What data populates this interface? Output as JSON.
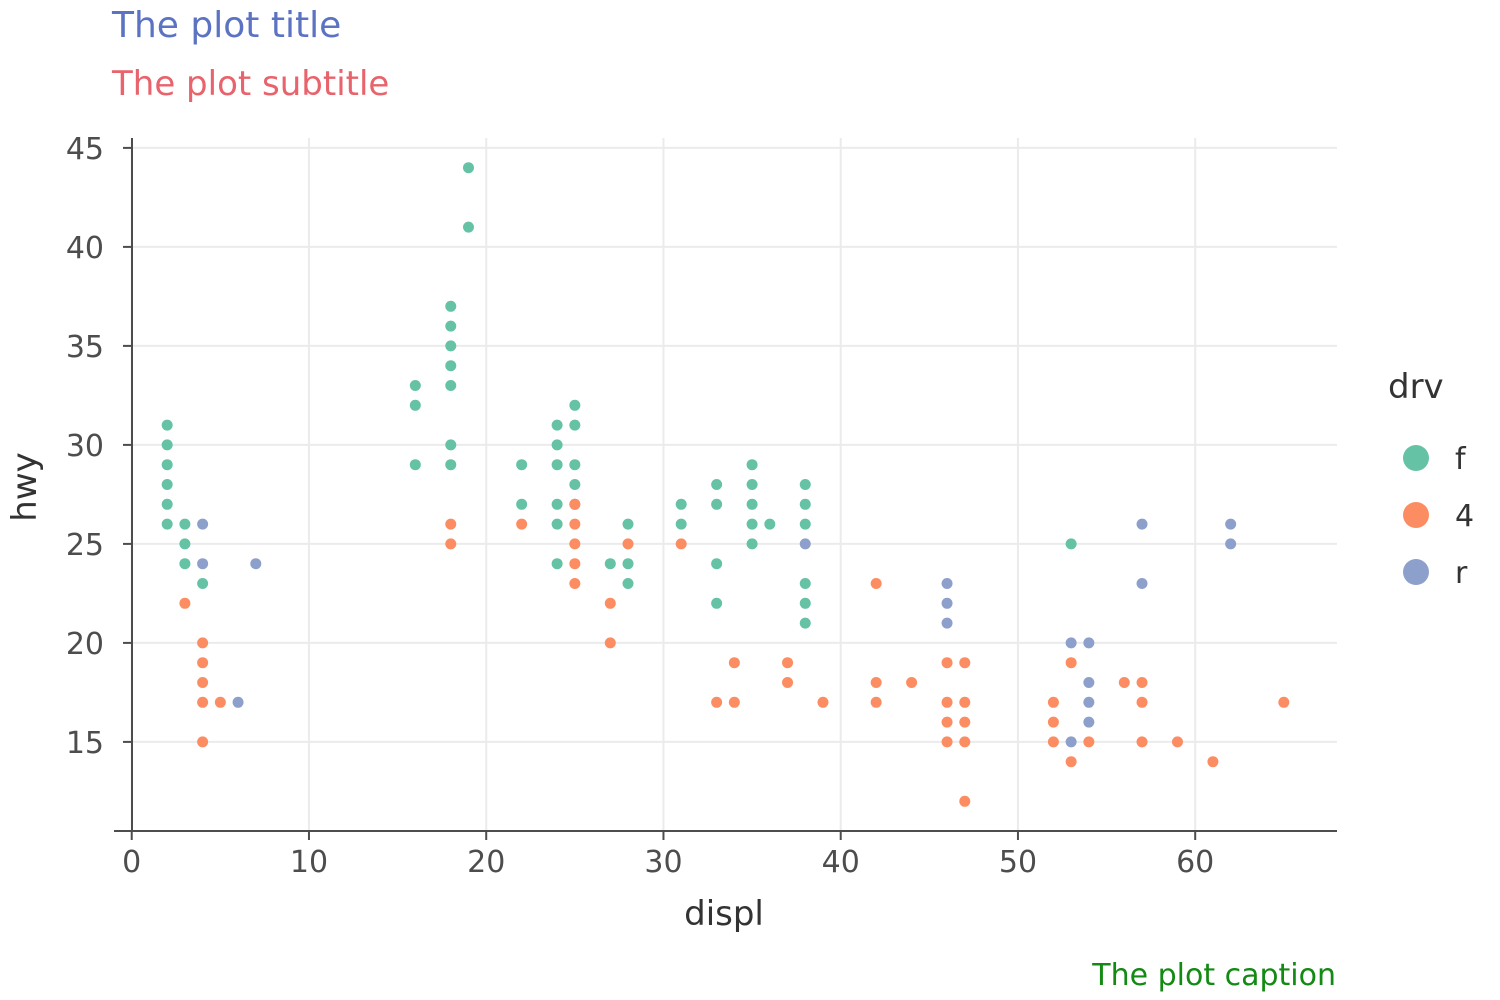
{
  "chart_data": {
    "type": "scatter",
    "title": "The plot title",
    "subtitle": "The plot subtitle",
    "caption": "The plot caption",
    "xlabel": "displ",
    "ylabel": "hwy",
    "xlim": [
      -1,
      68
    ],
    "ylim": [
      10.5,
      45.5
    ],
    "x_ticks": [
      0,
      10,
      20,
      30,
      40,
      50,
      60
    ],
    "y_ticks": [
      15,
      20,
      25,
      30,
      35,
      40,
      45
    ],
    "grid": "on",
    "legend": {
      "title": "drv",
      "placement": "right",
      "entries": [
        "f",
        "4",
        "r"
      ]
    },
    "colors": {
      "title": "#5b73c2",
      "subtitle": "#e8636b",
      "caption": "#138a13",
      "f": "#66c2a5",
      "4": "#fc8d62",
      "r": "#8da0cb",
      "grid": "#ebebeb",
      "axis": "#4d4d4d"
    },
    "series": [
      {
        "name": "f",
        "points": [
          [
            2,
            31
          ],
          [
            2,
            30
          ],
          [
            2,
            29
          ],
          [
            2,
            28
          ],
          [
            2,
            27
          ],
          [
            2,
            26
          ],
          [
            3,
            26
          ],
          [
            3,
            25
          ],
          [
            3,
            24
          ],
          [
            4,
            23
          ],
          [
            16,
            33
          ],
          [
            16,
            32
          ],
          [
            16,
            29
          ],
          [
            18,
            37
          ],
          [
            18,
            36
          ],
          [
            18,
            35
          ],
          [
            18,
            34
          ],
          [
            18,
            33
          ],
          [
            18,
            30
          ],
          [
            18,
            29
          ],
          [
            19,
            44
          ],
          [
            19,
            41
          ],
          [
            22,
            29
          ],
          [
            22,
            27
          ],
          [
            24,
            31
          ],
          [
            24,
            30
          ],
          [
            24,
            29
          ],
          [
            24,
            27
          ],
          [
            24,
            26
          ],
          [
            24,
            24
          ],
          [
            25,
            32
          ],
          [
            25,
            31
          ],
          [
            25,
            29
          ],
          [
            25,
            28
          ],
          [
            25,
            27
          ],
          [
            27,
            24
          ],
          [
            28,
            26
          ],
          [
            28,
            24
          ],
          [
            28,
            23
          ],
          [
            31,
            27
          ],
          [
            31,
            26
          ],
          [
            33,
            28
          ],
          [
            33,
            27
          ],
          [
            33,
            24
          ],
          [
            33,
            22
          ],
          [
            35,
            29
          ],
          [
            35,
            28
          ],
          [
            35,
            27
          ],
          [
            35,
            26
          ],
          [
            35,
            25
          ],
          [
            36,
            26
          ],
          [
            38,
            28
          ],
          [
            38,
            27
          ],
          [
            38,
            26
          ],
          [
            38,
            23
          ],
          [
            38,
            22
          ],
          [
            38,
            21
          ],
          [
            53,
            25
          ]
        ]
      },
      {
        "name": "4",
        "points": [
          [
            3,
            22
          ],
          [
            4,
            20
          ],
          [
            4,
            19
          ],
          [
            4,
            18
          ],
          [
            4,
            17
          ],
          [
            4,
            15
          ],
          [
            5,
            17
          ],
          [
            18,
            26
          ],
          [
            18,
            25
          ],
          [
            22,
            26
          ],
          [
            25,
            27
          ],
          [
            25,
            26
          ],
          [
            25,
            25
          ],
          [
            25,
            24
          ],
          [
            25,
            23
          ],
          [
            27,
            22
          ],
          [
            27,
            20
          ],
          [
            28,
            25
          ],
          [
            31,
            25
          ],
          [
            33,
            17
          ],
          [
            34,
            19
          ],
          [
            34,
            17
          ],
          [
            37,
            19
          ],
          [
            37,
            18
          ],
          [
            39,
            17
          ],
          [
            42,
            23
          ],
          [
            42,
            18
          ],
          [
            42,
            17
          ],
          [
            44,
            18
          ],
          [
            46,
            19
          ],
          [
            46,
            17
          ],
          [
            46,
            16
          ],
          [
            46,
            15
          ],
          [
            47,
            19
          ],
          [
            47,
            17
          ],
          [
            47,
            16
          ],
          [
            47,
            15
          ],
          [
            47,
            12
          ],
          [
            52,
            17
          ],
          [
            52,
            16
          ],
          [
            52,
            15
          ],
          [
            53,
            19
          ],
          [
            53,
            14
          ],
          [
            54,
            15
          ],
          [
            56,
            18
          ],
          [
            57,
            18
          ],
          [
            57,
            17
          ],
          [
            57,
            15
          ],
          [
            59,
            15
          ],
          [
            61,
            14
          ],
          [
            65,
            17
          ]
        ]
      },
      {
        "name": "r",
        "points": [
          [
            4,
            26
          ],
          [
            4,
            24
          ],
          [
            6,
            17
          ],
          [
            7,
            24
          ],
          [
            38,
            25
          ],
          [
            46,
            23
          ],
          [
            46,
            22
          ],
          [
            46,
            21
          ],
          [
            53,
            20
          ],
          [
            53,
            15
          ],
          [
            54,
            20
          ],
          [
            54,
            18
          ],
          [
            54,
            17
          ],
          [
            54,
            16
          ],
          [
            57,
            26
          ],
          [
            57,
            23
          ],
          [
            62,
            26
          ],
          [
            62,
            25
          ]
        ]
      }
    ]
  }
}
